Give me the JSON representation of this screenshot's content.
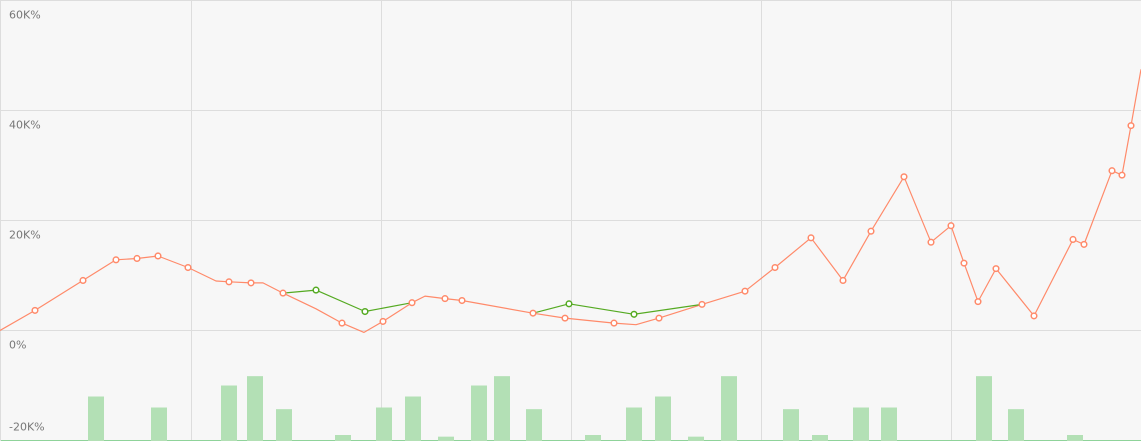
{
  "chart_data": {
    "type": "line",
    "y_axis": {
      "ticks": [
        60000,
        40000,
        20000,
        0,
        -20000
      ],
      "tick_labels": [
        "60K%",
        "40K%",
        "20K%",
        "0%",
        "-20K%"
      ],
      "range": [
        -20000,
        60000
      ]
    },
    "x_axis": {
      "range": [
        0,
        1141
      ],
      "vertical_gridlines_at": [
        191,
        381,
        571,
        761,
        951
      ],
      "labels_visible": false
    },
    "grid": true,
    "legend": "none",
    "colors": {
      "main_line": "#ff8a6a",
      "highlight_line": "#55aa22",
      "bars": "#b3e0b5",
      "grid": "#dddddd",
      "background": "#f7f7f7"
    },
    "series": [
      {
        "kind": "line",
        "color": "#ff8a6a",
        "points": [
          {
            "x": 0,
            "y": 0,
            "marker": false
          },
          {
            "x": 35,
            "y": 3650,
            "marker": true
          },
          {
            "x": 83,
            "y": 9100,
            "marker": true
          },
          {
            "x": 116,
            "y": 12850,
            "marker": true
          },
          {
            "x": 137,
            "y": 13100,
            "marker": true
          },
          {
            "x": 158,
            "y": 13550,
            "marker": true
          },
          {
            "x": 188,
            "y": 11450,
            "marker": true
          },
          {
            "x": 216,
            "y": 9000,
            "marker": false
          },
          {
            "x": 229,
            "y": 8850,
            "marker": true
          },
          {
            "x": 251,
            "y": 8650,
            "marker": true
          },
          {
            "x": 263,
            "y": 8650,
            "marker": false
          },
          {
            "x": 283,
            "y": 6800,
            "marker": true
          },
          {
            "x": 316,
            "y": 3950,
            "marker": false
          },
          {
            "x": 342,
            "y": 1350,
            "marker": true
          },
          {
            "x": 364,
            "y": -350,
            "marker": false
          },
          {
            "x": 383,
            "y": 1650,
            "marker": true
          },
          {
            "x": 412,
            "y": 5050,
            "marker": true
          },
          {
            "x": 425,
            "y": 6250,
            "marker": false
          },
          {
            "x": 445,
            "y": 5800,
            "marker": true
          },
          {
            "x": 462,
            "y": 5450,
            "marker": true
          },
          {
            "x": 533,
            "y": 3150,
            "marker": true
          },
          {
            "x": 565,
            "y": 2250,
            "marker": true
          },
          {
            "x": 614,
            "y": 1350,
            "marker": true
          },
          {
            "x": 636,
            "y": 1050,
            "marker": false
          },
          {
            "x": 659,
            "y": 2250,
            "marker": true
          },
          {
            "x": 702,
            "y": 4750,
            "marker": true
          },
          {
            "x": 745,
            "y": 7150,
            "marker": true
          },
          {
            "x": 775,
            "y": 11450,
            "marker": true
          },
          {
            "x": 811,
            "y": 16850,
            "marker": true
          },
          {
            "x": 843,
            "y": 9100,
            "marker": true
          },
          {
            "x": 871,
            "y": 18050,
            "marker": true
          },
          {
            "x": 904,
            "y": 27950,
            "marker": true
          },
          {
            "x": 931,
            "y": 16050,
            "marker": true
          },
          {
            "x": 951,
            "y": 19050,
            "marker": true
          },
          {
            "x": 964,
            "y": 12250,
            "marker": true
          },
          {
            "x": 978,
            "y": 5250,
            "marker": true
          },
          {
            "x": 996,
            "y": 11250,
            "marker": true
          },
          {
            "x": 1034,
            "y": 2650,
            "marker": true
          },
          {
            "x": 1073,
            "y": 16550,
            "marker": true
          },
          {
            "x": 1084,
            "y": 15650,
            "marker": true
          },
          {
            "x": 1112,
            "y": 29050,
            "marker": true
          },
          {
            "x": 1122,
            "y": 28250,
            "marker": true
          },
          {
            "x": 1131,
            "y": 37250,
            "marker": true
          },
          {
            "x": 1141,
            "y": 47500,
            "marker": false
          }
        ]
      },
      {
        "kind": "line",
        "color": "#55aa22",
        "points": [
          {
            "x": 283,
            "y": 6800,
            "marker": false
          },
          {
            "x": 316,
            "y": 7350,
            "marker": true
          },
          {
            "x": 365,
            "y": 3450,
            "marker": true
          },
          {
            "x": 412,
            "y": 5050,
            "marker": false
          }
        ]
      },
      {
        "kind": "line",
        "color": "#55aa22",
        "points": [
          {
            "x": 533,
            "y": 3150,
            "marker": false
          },
          {
            "x": 569,
            "y": 4850,
            "marker": true
          },
          {
            "x": 634,
            "y": 2950,
            "marker": true
          },
          {
            "x": 702,
            "y": 4750,
            "marker": false
          }
        ]
      },
      {
        "kind": "bar",
        "color": "#b3e0b5",
        "bars": [
          {
            "x": 96,
            "top": -12000
          },
          {
            "x": 159,
            "top": -14000
          },
          {
            "x": 229,
            "top": -10000
          },
          {
            "x": 255,
            "top": -8300
          },
          {
            "x": 284,
            "top": -14300
          },
          {
            "x": 343,
            "top": -19000
          },
          {
            "x": 384,
            "top": -14000
          },
          {
            "x": 413,
            "top": -12000
          },
          {
            "x": 446,
            "top": -19300
          },
          {
            "x": 479,
            "top": -10000
          },
          {
            "x": 502,
            "top": -8300
          },
          {
            "x": 534,
            "top": -14300
          },
          {
            "x": 593,
            "top": -19000
          },
          {
            "x": 634,
            "top": -14000
          },
          {
            "x": 663,
            "top": -12000
          },
          {
            "x": 696,
            "top": -19300
          },
          {
            "x": 729,
            "top": -8300
          },
          {
            "x": 791,
            "top": -14300
          },
          {
            "x": 820,
            "top": -19000
          },
          {
            "x": 861,
            "top": -14000
          },
          {
            "x": 889,
            "top": -14000
          },
          {
            "x": 984,
            "top": -8300
          },
          {
            "x": 1016,
            "top": -14300
          },
          {
            "x": 1075,
            "top": -19000
          }
        ]
      }
    ]
  }
}
